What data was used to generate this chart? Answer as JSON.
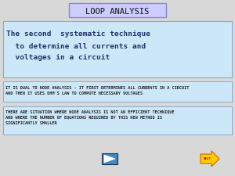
{
  "bg_color": "#d8d8d8",
  "title_text": "LOOP ANALYSIS",
  "title_box_facecolor": "#ccccff",
  "title_box_edgecolor": "#8888cc",
  "main_box_facecolor": "#cce8f8",
  "main_box_edgecolor": "#88aacc",
  "main_text_line1": "The second  systematic technique",
  "main_text_line2": "  to determine all currents and",
  "main_text_line3": "  voltages in a circuit",
  "main_text_color": "#223366",
  "info_box_facecolor": "#cce8f8",
  "info_box_edgecolor": "#88aacc",
  "info_text_color": "#222222",
  "info1_text": "IT IS DUAL TO NODE ANALYSIS - IT FIRST DETERMINES ALL CURRENTS IN A CIRCUIT\nAND THEN IT USES OHM'S LAW TO COMPUTE NECESSARY VOLTAGES",
  "info2_text": "THERE ARE SITUATION WHERE NODE ANALYSIS IS NOT AN EFFICIENT TECHNIQUE\nAND WHERE THE NUMBER OF EQUATIONS REQUIRED BY THIS NEW METHOD IS\nSIGNIFICANTLY SMALLER",
  "play_color": "#2266aa",
  "play_border": "#113355",
  "next_fill": "#ffcc00",
  "next_edge": "#cc6600",
  "next_text": "NEXT",
  "next_text_color": "#cc0000"
}
